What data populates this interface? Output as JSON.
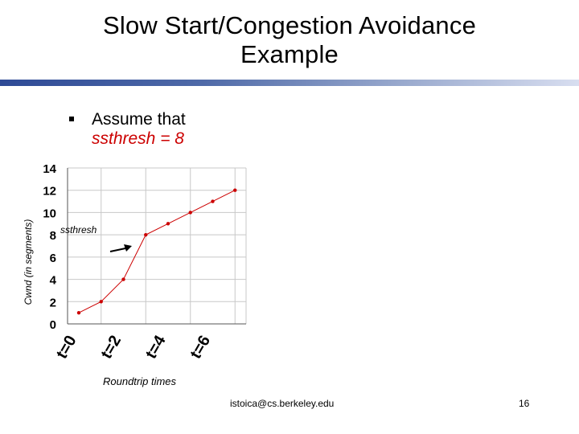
{
  "slide": {
    "title_line1": "Slow Start/Congestion Avoidance",
    "title_line2": "Example",
    "bullet_text": "Assume that",
    "bullet_sub": "ssthresh = 8",
    "footer_email": "istoica@cs.berkeley.edu",
    "page_number": "16"
  },
  "colors": {
    "title_bar": "#3b5aa0",
    "series": "#cc0000",
    "arrow": "#000000"
  },
  "chart_data": {
    "type": "line",
    "title": "",
    "ylabel": "Cwnd (in segments)",
    "xlabel": "Roundtrip times",
    "x": [
      0,
      1,
      2,
      3,
      4,
      5,
      6,
      7
    ],
    "series": [
      {
        "values": [
          1,
          2,
          4,
          8,
          9,
          10,
          11,
          12
        ]
      }
    ],
    "ylim": [
      0,
      14
    ],
    "yticks": [
      0,
      2,
      4,
      6,
      8,
      10,
      12,
      14
    ],
    "xticks": [
      {
        "x": 0,
        "label": "t=0"
      },
      {
        "x": 2,
        "label": "t=2"
      },
      {
        "x": 4,
        "label": "t=4"
      },
      {
        "x": 6,
        "label": "t=6"
      }
    ],
    "grid": true,
    "annotation": {
      "text": "ssthresh",
      "y": 8
    }
  }
}
